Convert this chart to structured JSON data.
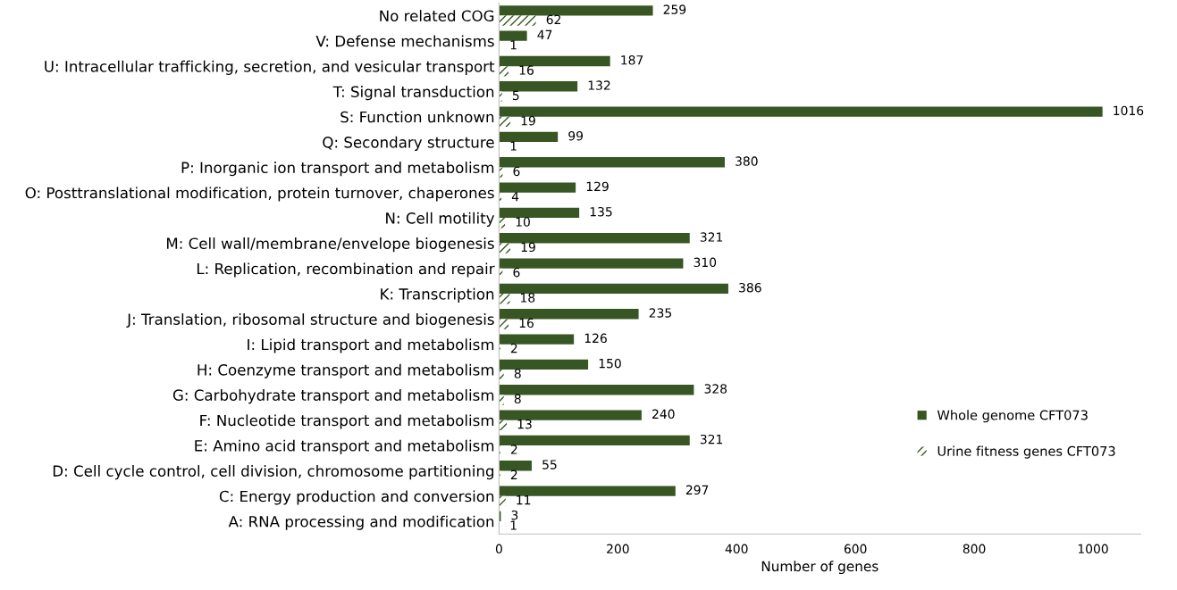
{
  "chart_data": {
    "type": "bar",
    "orientation": "horizontal",
    "xlabel": "Number of genes",
    "categories": [
      "No related COG",
      "V: Defense mechanisms",
      "U: Intracellular trafficking, secretion, and vesicular transport",
      "T: Signal transduction",
      "S: Function unknown",
      "Q: Secondary structure",
      "P: Inorganic ion transport and metabolism",
      "O: Posttranslational modification, protein turnover, chaperones",
      "N: Cell motility",
      "M: Cell wall/membrane/envelope biogenesis",
      "L: Replication, recombination and repair",
      "K: Transcription",
      "J: Translation, ribosomal structure and biogenesis",
      "I: Lipid transport and metabolism",
      "H: Coenzyme transport and metabolism",
      "G: Carbohydrate transport and metabolism",
      "F: Nucleotide transport and metabolism",
      "E: Amino acid transport and metabolism",
      "D: Cell cycle control, cell division, chromosome partitioning",
      "C: Energy production and conversion",
      "A: RNA processing and modification"
    ],
    "series": [
      {
        "name": "Whole genome CFT073",
        "color": "#375623",
        "values": [
          259,
          47,
          187,
          132,
          1016,
          99,
          380,
          129,
          135,
          321,
          310,
          386,
          235,
          126,
          150,
          328,
          240,
          321,
          55,
          297,
          3
        ]
      },
      {
        "name": "Urine fitness genes CFT073",
        "color": "#375623",
        "values": [
          62,
          1,
          16,
          5,
          19,
          1,
          6,
          4,
          10,
          19,
          6,
          18,
          16,
          2,
          8,
          8,
          13,
          2,
          2,
          11,
          1
        ]
      }
    ],
    "xlim": [
      0,
      1080
    ],
    "xticks": [
      0,
      200,
      400,
      600,
      800,
      1000
    ],
    "data_labels": true,
    "grid": false,
    "legend": "bottom right"
  }
}
